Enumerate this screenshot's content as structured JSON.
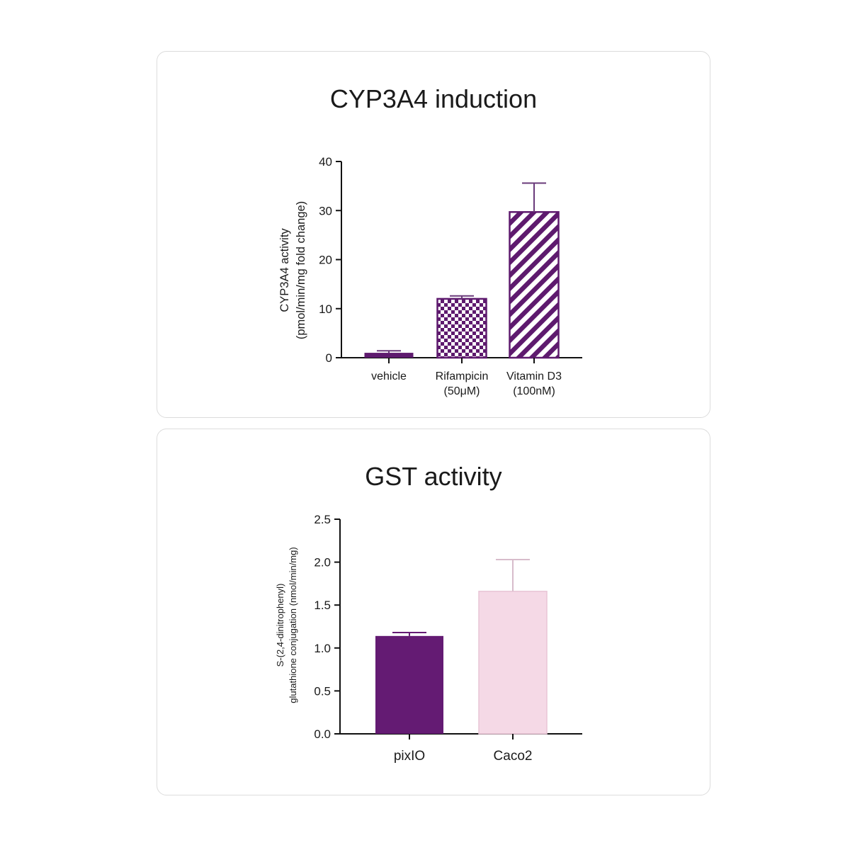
{
  "chart_data": [
    {
      "type": "bar",
      "title": "CYP3A4 induction",
      "xlabel": "",
      "ylabel_lines": [
        "CYP3A4 activity",
        "(pmol/min/mg fold change)"
      ],
      "categories": [
        {
          "lines": [
            "vehicle"
          ]
        },
        {
          "lines": [
            "Rifampicin",
            "(50μM)"
          ]
        },
        {
          "lines": [
            "Vitamin D3",
            "(100nM)"
          ]
        }
      ],
      "values": [
        1.0,
        12.0,
        29.7
      ],
      "error_upper": [
        1.4,
        12.6,
        35.6
      ],
      "patterns": [
        "solid",
        "checker",
        "diagonal"
      ],
      "ylim": [
        0,
        40
      ],
      "yticks": [
        "0",
        "10",
        "20",
        "30",
        "40"
      ],
      "bar_color": "#5e1a6e",
      "error_color": "#6a3a7a",
      "grid": false
    },
    {
      "type": "bar",
      "title": "GST activity",
      "xlabel": "",
      "ylabel_lines": [
        "S-(2,4-dinitrophenyl)",
        "glutathione conjugation  (nmol/min/mg)"
      ],
      "categories": [
        {
          "lines": [
            "pixIO"
          ]
        },
        {
          "lines": [
            "Caco2"
          ]
        }
      ],
      "values": [
        1.14,
        1.66
      ],
      "error_upper": [
        1.18,
        2.03
      ],
      "ylim": [
        0,
        2.5
      ],
      "yticks": [
        "0.0",
        "0.5",
        "1.0",
        "1.5",
        "2.0",
        "2.5"
      ],
      "bar_colors": [
        "#641b73",
        "#f5d9e6"
      ],
      "error_colors": [
        "#641b73",
        "#d7bccb"
      ],
      "grid": false
    }
  ]
}
